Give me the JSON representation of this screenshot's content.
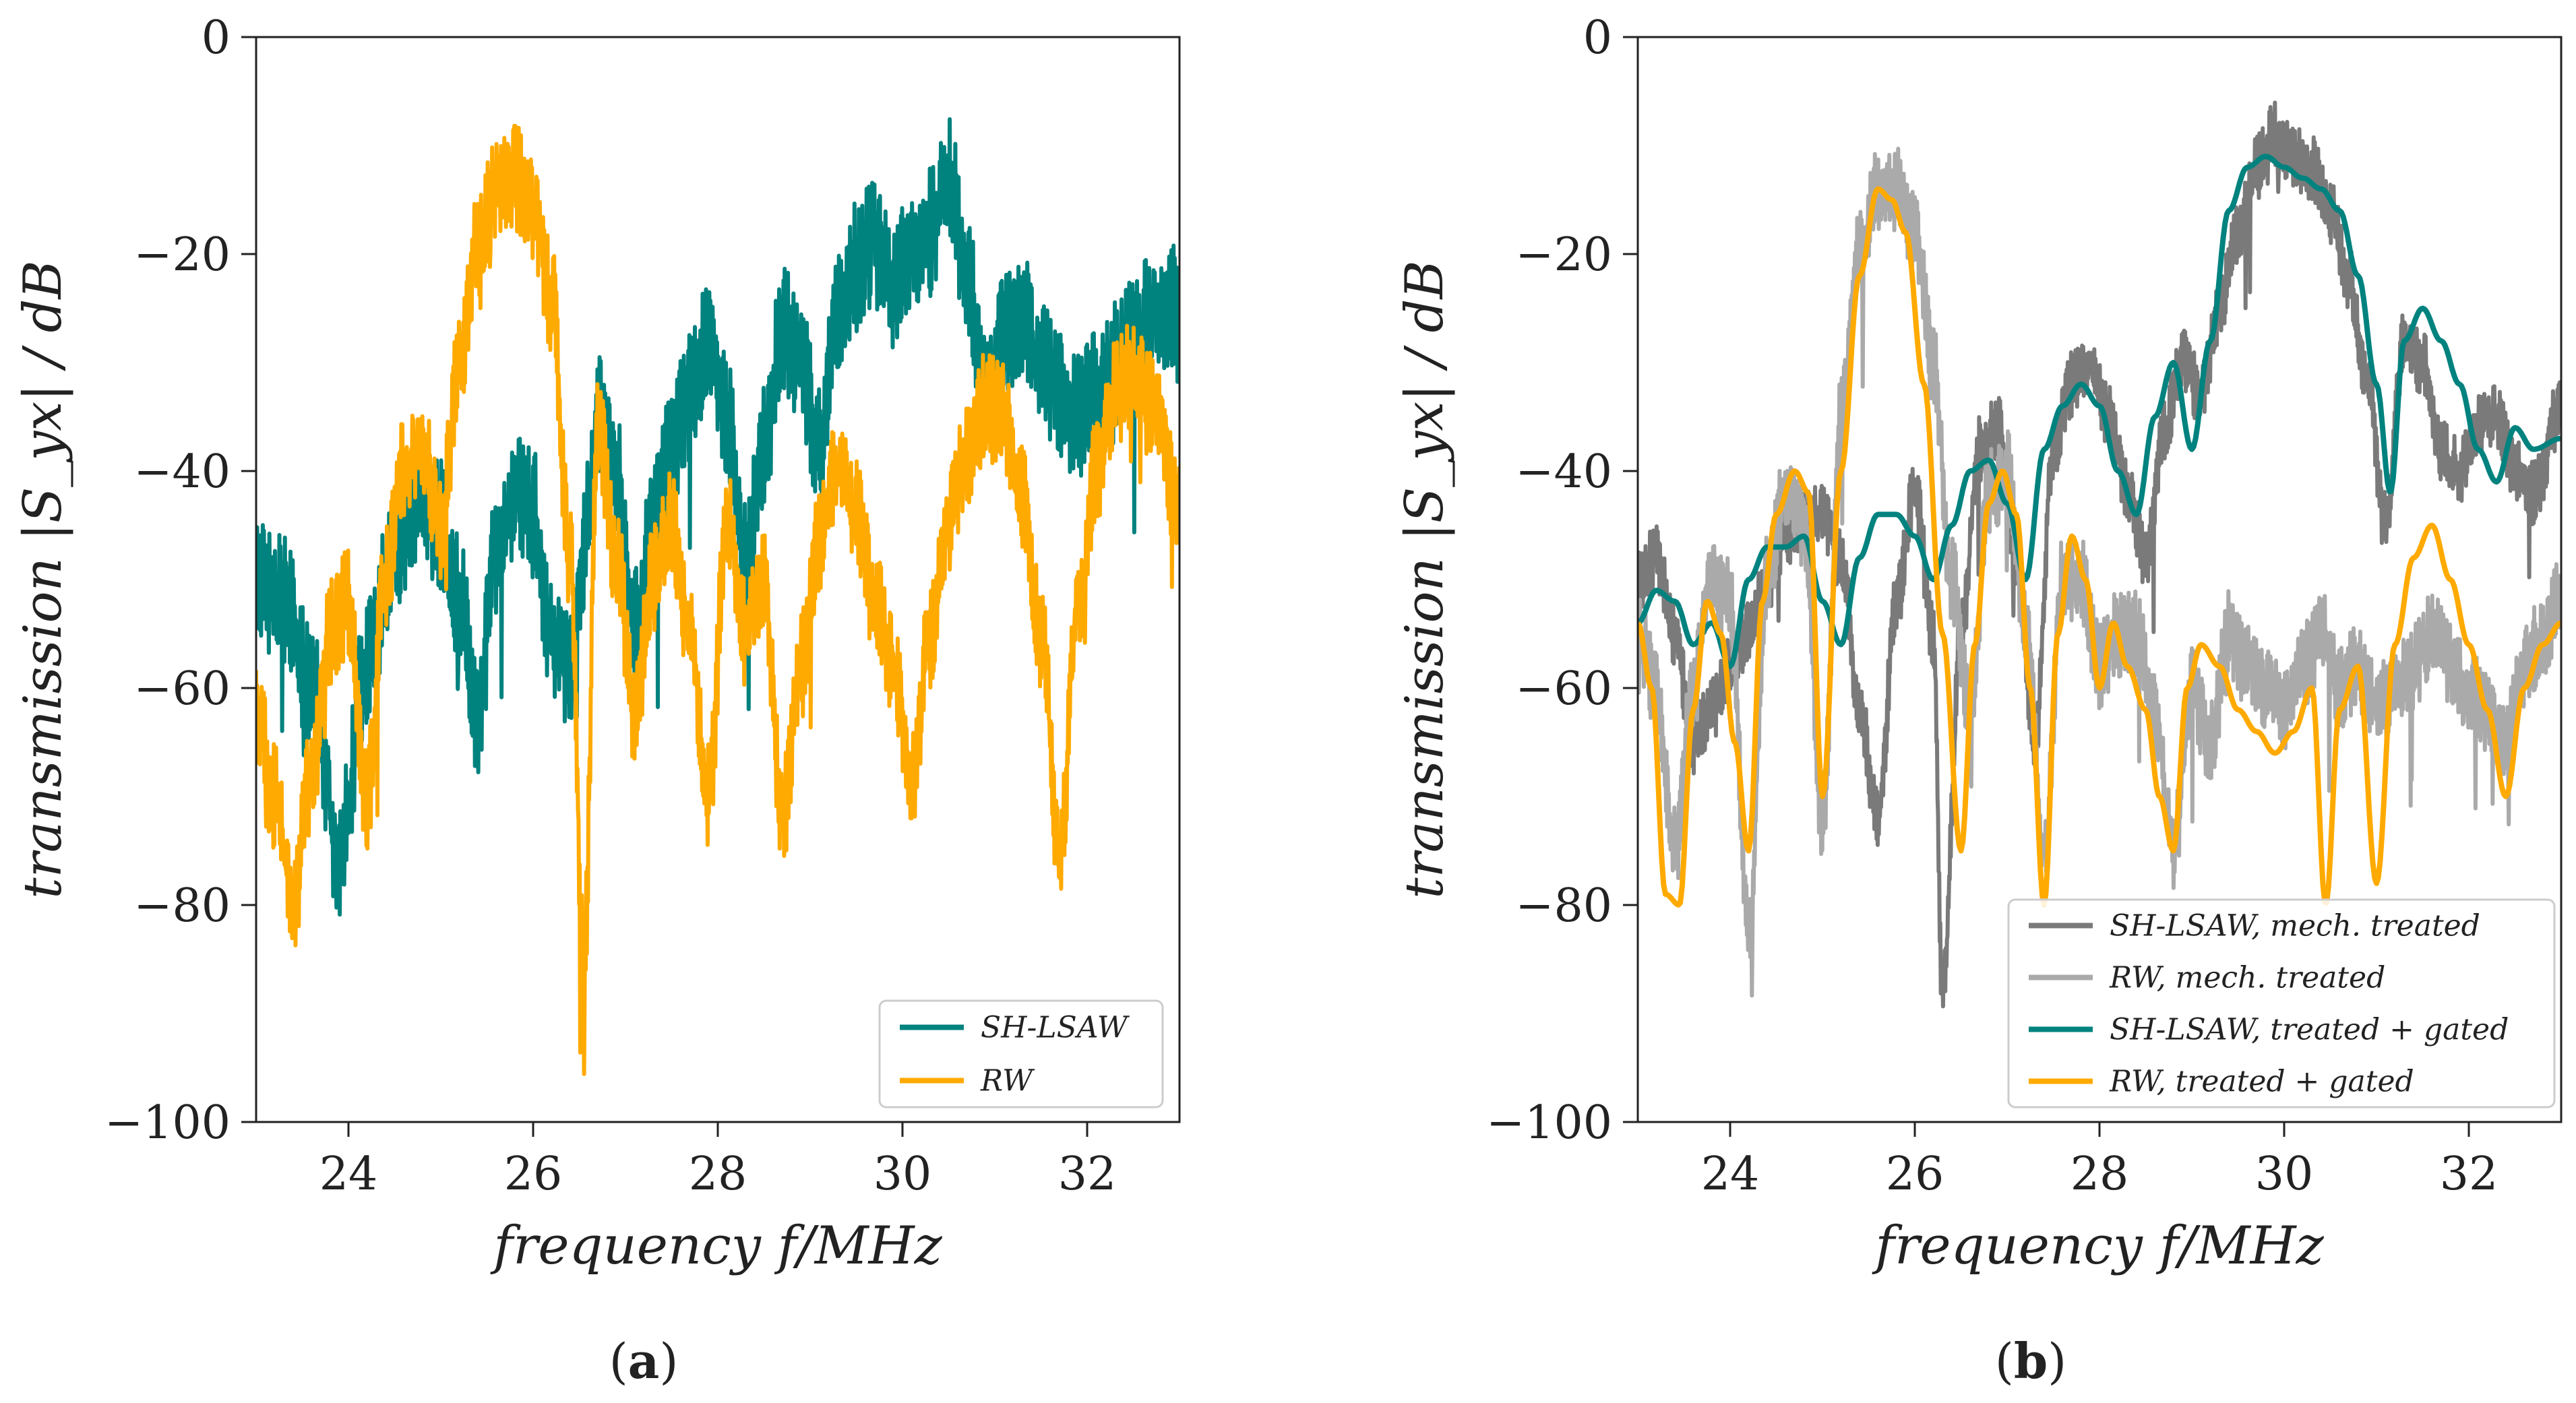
{
  "figure": {
    "panels": [
      "(a)",
      "(b)"
    ],
    "panel_letters": [
      "a",
      "b"
    ]
  },
  "colors": {
    "sh_lsaw": "#00827f",
    "rw": "#ffaa00",
    "mech_sh": "#7a7a7a",
    "mech_rw": "#aaaaaa",
    "axis": "#222222"
  },
  "chart_data": [
    {
      "type": "line",
      "panel": "a",
      "xlabel": "frequency  f/MHz",
      "ylabel": "transmission  |S_yx| / dB",
      "xlim": [
        23,
        33
      ],
      "ylim": [
        -100,
        0
      ],
      "xticks": [
        "24",
        "26",
        "28",
        "30",
        "32"
      ],
      "yticks": [
        "0",
        "−20",
        "−40",
        "−60",
        "−80",
        "−100"
      ],
      "legend_position": "lower-right",
      "series": [
        {
          "name": "SH-LSAW",
          "color_key": "sh_lsaw",
          "noise": 6,
          "x": [
            23.0,
            23.3,
            23.6,
            23.9,
            24.2,
            24.5,
            24.8,
            25.0,
            25.2,
            25.4,
            25.6,
            25.8,
            26.0,
            26.2,
            26.4,
            26.6,
            26.7,
            26.9,
            27.1,
            27.3,
            27.5,
            27.7,
            27.9,
            28.1,
            28.3,
            28.5,
            28.7,
            28.9,
            29.1,
            29.3,
            29.5,
            29.7,
            29.9,
            30.1,
            30.3,
            30.5,
            30.7,
            30.9,
            31.1,
            31.3,
            31.5,
            31.7,
            31.9,
            32.1,
            32.3,
            32.5,
            32.7,
            33.0
          ],
          "y": [
            -50,
            -52,
            -60,
            -75,
            -58,
            -47,
            -42,
            -45,
            -52,
            -62,
            -48,
            -42,
            -44,
            -55,
            -58,
            -45,
            -35,
            -40,
            -55,
            -45,
            -38,
            -33,
            -28,
            -35,
            -48,
            -38,
            -27,
            -30,
            -38,
            -25,
            -21,
            -19,
            -23,
            -20,
            -18,
            -13,
            -22,
            -33,
            -28,
            -25,
            -30,
            -33,
            -35,
            -32,
            -30,
            -28,
            -26,
            -25
          ]
        },
        {
          "name": "RW",
          "color_key": "rw",
          "noise": 5,
          "x": [
            23.0,
            23.2,
            23.4,
            23.6,
            23.8,
            24.0,
            24.2,
            24.4,
            24.6,
            24.8,
            25.0,
            25.2,
            25.4,
            25.6,
            25.8,
            26.0,
            26.2,
            26.4,
            26.55,
            26.7,
            26.9,
            27.1,
            27.3,
            27.5,
            27.7,
            27.9,
            28.1,
            28.3,
            28.5,
            28.7,
            28.9,
            29.1,
            29.3,
            29.5,
            29.7,
            29.9,
            30.1,
            30.3,
            30.5,
            30.7,
            30.9,
            31.1,
            31.3,
            31.5,
            31.7,
            31.9,
            32.1,
            32.3,
            32.5,
            32.7,
            33.0
          ],
          "y": [
            -62,
            -70,
            -80,
            -68,
            -55,
            -52,
            -70,
            -50,
            -40,
            -38,
            -45,
            -30,
            -19,
            -14,
            -13,
            -16,
            -24,
            -48,
            -85,
            -36,
            -48,
            -62,
            -50,
            -45,
            -55,
            -70,
            -45,
            -55,
            -50,
            -72,
            -58,
            -46,
            -40,
            -44,
            -52,
            -58,
            -68,
            -55,
            -45,
            -38,
            -34,
            -35,
            -42,
            -55,
            -75,
            -52,
            -40,
            -33,
            -31,
            -34,
            -43
          ]
        }
      ]
    },
    {
      "type": "line",
      "panel": "b",
      "xlabel": "frequency  f/MHz",
      "ylabel": "transmission  |S_yx| / dB",
      "xlim": [
        23,
        33
      ],
      "ylim": [
        -100,
        0
      ],
      "xticks": [
        "24",
        "26",
        "28",
        "30",
        "32"
      ],
      "yticks": [
        "0",
        "−20",
        "−40",
        "−60",
        "−80",
        "−100"
      ],
      "legend_position": "lower-right",
      "series": [
        {
          "name": "SH-LSAW, mech. treated",
          "color_key": "mech_sh",
          "noise": 3,
          "x": [
            23.0,
            23.2,
            23.4,
            23.6,
            23.8,
            24.0,
            24.2,
            24.4,
            24.6,
            24.8,
            25.0,
            25.2,
            25.4,
            25.6,
            25.8,
            26.0,
            26.2,
            26.3,
            26.5,
            26.7,
            26.9,
            27.1,
            27.3,
            27.5,
            27.7,
            27.9,
            28.1,
            28.3,
            28.5,
            28.7,
            28.9,
            29.1,
            29.3,
            29.5,
            29.7,
            29.9,
            30.1,
            30.3,
            30.5,
            30.7,
            30.9,
            31.1,
            31.3,
            31.5,
            31.7,
            31.9,
            32.1,
            32.3,
            32.5,
            32.7,
            33.0
          ],
          "y": [
            -50,
            -48,
            -55,
            -65,
            -62,
            -58,
            -55,
            -50,
            -46,
            -45,
            -44,
            -48,
            -62,
            -72,
            -52,
            -42,
            -55,
            -88,
            -55,
            -38,
            -36,
            -48,
            -65,
            -38,
            -32,
            -30,
            -35,
            -42,
            -48,
            -36,
            -30,
            -33,
            -25,
            -18,
            -12,
            -9,
            -11,
            -12,
            -16,
            -22,
            -32,
            -45,
            -28,
            -30,
            -38,
            -40,
            -36,
            -35,
            -40,
            -42,
            -34
          ]
        },
        {
          "name": "RW, mech. treated",
          "color_key": "mech_rw",
          "noise": 4,
          "x": [
            23.0,
            23.2,
            23.4,
            23.6,
            23.8,
            24.0,
            24.2,
            24.4,
            24.6,
            24.8,
            25.0,
            25.2,
            25.4,
            25.6,
            25.8,
            26.0,
            26.2,
            26.4,
            26.6,
            26.8,
            27.0,
            27.2,
            27.4,
            27.6,
            27.8,
            28.0,
            28.2,
            28.4,
            28.6,
            28.8,
            29.0,
            29.2,
            29.4,
            29.6,
            29.8,
            30.0,
            30.2,
            30.4,
            30.6,
            30.8,
            31.0,
            31.2,
            31.4,
            31.6,
            31.8,
            32.0,
            32.2,
            32.4,
            32.6,
            32.8,
            33.0
          ],
          "y": [
            -55,
            -60,
            -75,
            -60,
            -50,
            -52,
            -82,
            -50,
            -42,
            -45,
            -72,
            -35,
            -20,
            -14,
            -14,
            -18,
            -30,
            -50,
            -62,
            -42,
            -40,
            -55,
            -75,
            -50,
            -50,
            -58,
            -55,
            -55,
            -62,
            -75,
            -60,
            -65,
            -55,
            -58,
            -60,
            -62,
            -58,
            -55,
            -60,
            -58,
            -62,
            -60,
            -58,
            -55,
            -58,
            -60,
            -62,
            -65,
            -58,
            -55,
            -52
          ]
        },
        {
          "name": "SH-LSAW, treated + gated",
          "color_key": "sh_lsaw",
          "noise": 0,
          "x": [
            23.0,
            23.2,
            23.4,
            23.6,
            23.8,
            24.0,
            24.2,
            24.4,
            24.6,
            24.8,
            25.0,
            25.2,
            25.4,
            25.6,
            25.8,
            26.0,
            26.2,
            26.4,
            26.6,
            26.8,
            27.0,
            27.2,
            27.4,
            27.6,
            27.8,
            28.0,
            28.2,
            28.4,
            28.6,
            28.8,
            29.0,
            29.2,
            29.4,
            29.6,
            29.8,
            30.0,
            30.2,
            30.4,
            30.6,
            30.8,
            31.0,
            31.15,
            31.3,
            31.5,
            31.7,
            31.9,
            32.1,
            32.3,
            32.5,
            32.7,
            33.0
          ],
          "y": [
            -54,
            -51,
            -52,
            -56,
            -54,
            -58,
            -50,
            -47,
            -47,
            -46,
            -52,
            -56,
            -48,
            -44,
            -44,
            -46,
            -50,
            -45,
            -40,
            -39,
            -43,
            -50,
            -38,
            -34,
            -32,
            -34,
            -40,
            -44,
            -35,
            -30,
            -38,
            -28,
            -16,
            -12,
            -11,
            -12,
            -13,
            -14,
            -16,
            -22,
            -32,
            -42,
            -28,
            -25,
            -28,
            -32,
            -38,
            -41,
            -36,
            -38,
            -37
          ]
        },
        {
          "name": "RW, treated + gated",
          "color_key": "rw",
          "noise": 0,
          "x": [
            23.0,
            23.15,
            23.3,
            23.45,
            23.6,
            23.75,
            23.9,
            24.05,
            24.2,
            24.35,
            24.5,
            24.7,
            24.85,
            25.0,
            25.2,
            25.4,
            25.6,
            25.75,
            25.9,
            26.1,
            26.3,
            26.5,
            26.65,
            26.8,
            26.95,
            27.1,
            27.25,
            27.4,
            27.55,
            27.7,
            27.85,
            28.0,
            28.15,
            28.3,
            28.5,
            28.65,
            28.8,
            28.95,
            29.1,
            29.3,
            29.5,
            29.7,
            29.9,
            30.1,
            30.3,
            30.45,
            30.6,
            30.8,
            31.0,
            31.2,
            31.4,
            31.6,
            31.8,
            32.0,
            32.2,
            32.4,
            32.6,
            32.8,
            33.0
          ],
          "y": [
            -54,
            -60,
            -79,
            -80,
            -62,
            -52,
            -55,
            -65,
            -75,
            -52,
            -44,
            -40,
            -42,
            -70,
            -40,
            -22,
            -14,
            -15,
            -18,
            -32,
            -55,
            -75,
            -56,
            -43,
            -40,
            -44,
            -60,
            -80,
            -55,
            -46,
            -50,
            -60,
            -54,
            -58,
            -62,
            -70,
            -75,
            -60,
            -56,
            -58,
            -62,
            -64,
            -66,
            -64,
            -60,
            -80,
            -62,
            -58,
            -78,
            -56,
            -48,
            -45,
            -50,
            -56,
            -62,
            -70,
            -60,
            -56,
            -54
          ]
        }
      ]
    }
  ]
}
